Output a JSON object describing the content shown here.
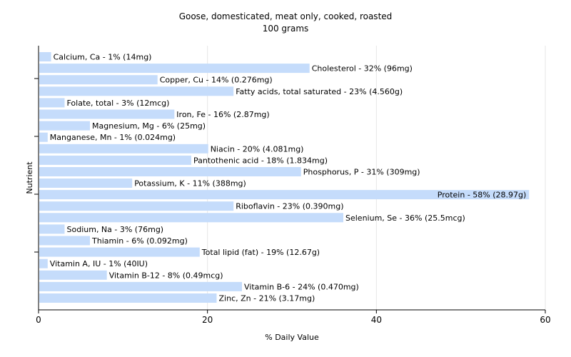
{
  "chart_data": {
    "type": "bar",
    "orientation": "horizontal",
    "title": "Goose, domesticated, meat only, cooked, roasted",
    "subtitle": "100 grams",
    "xlabel": "% Daily Value",
    "ylabel": "Nutrient",
    "xlim": [
      0,
      60
    ],
    "xticks": [
      "0",
      "20",
      "40",
      "60"
    ],
    "grid": true,
    "bar_color": "#c5dcfb",
    "categories": [
      "Calcium, Ca",
      "Cholesterol",
      "Copper, Cu",
      "Fatty acids, total saturated",
      "Folate, total",
      "Iron, Fe",
      "Magnesium, Mg",
      "Manganese, Mn",
      "Niacin",
      "Pantothenic acid",
      "Phosphorus, P",
      "Potassium, K",
      "Protein",
      "Riboflavin",
      "Selenium, Se",
      "Sodium, Na",
      "Thiamin",
      "Total lipid (fat)",
      "Vitamin A, IU",
      "Vitamin B-12",
      "Vitamin B-6",
      "Zinc, Zn"
    ],
    "values": [
      1.4,
      32,
      14,
      23,
      3,
      16,
      6,
      1,
      20,
      18,
      31,
      11,
      58,
      23,
      36,
      3,
      6,
      19,
      1,
      8,
      24,
      21
    ],
    "labels": [
      "Calcium, Ca - 1% (14mg)",
      "Cholesterol - 32% (96mg)",
      "Copper, Cu - 14% (0.276mg)",
      "Fatty acids, total saturated - 23% (4.560g)",
      "Folate, total - 3% (12mcg)",
      "Iron, Fe - 16% (2.87mg)",
      "Magnesium, Mg - 6% (25mg)",
      "Manganese, Mn - 1% (0.024mg)",
      "Niacin - 20% (4.081mg)",
      "Pantothenic acid - 18% (1.834mg)",
      "Phosphorus, P - 31% (309mg)",
      "Potassium, K - 11% (388mg)",
      "Protein - 58% (28.97g)",
      "Riboflavin - 23% (0.390mg)",
      "Selenium, Se - 36% (25.5mcg)",
      "Sodium, Na - 3% (76mg)",
      "Thiamin - 6% (0.092mg)",
      "Total lipid (fat) - 19% (12.67g)",
      "Vitamin A, IU - 1% (40IU)",
      "Vitamin B-12 - 8% (0.49mcg)",
      "Vitamin B-6 - 24% (0.470mg)",
      "Zinc, Zn - 21% (3.17mg)"
    ]
  }
}
